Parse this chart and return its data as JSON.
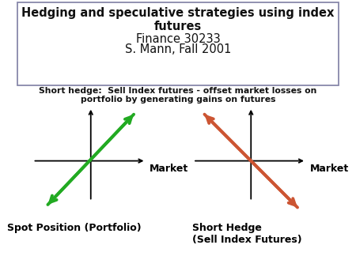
{
  "title_bold": "Hedging and speculative strategies using index\nfutures",
  "title_normal1": "Finance 30233",
  "title_normal2": "S. Mann, Fall 2001",
  "subtitle": "Short hedge:  Sell Index futures - offset market losses on\nportfolio by generating gains on futures",
  "left_label": "Spot Position (Portfolio)",
  "right_label": "Short Hedge\n(Sell Index Futures)",
  "market_label": "Market",
  "left_arrow_color": "#22aa22",
  "right_arrow_color": "#cc5533",
  "bg_color": "#ffffff",
  "box_edgecolor": "#8888aa",
  "text_color": "#111111",
  "subtitle_fontsize": 7.8,
  "title_fontsize": 10.5,
  "label_fontsize": 9,
  "market_fontsize": 9
}
